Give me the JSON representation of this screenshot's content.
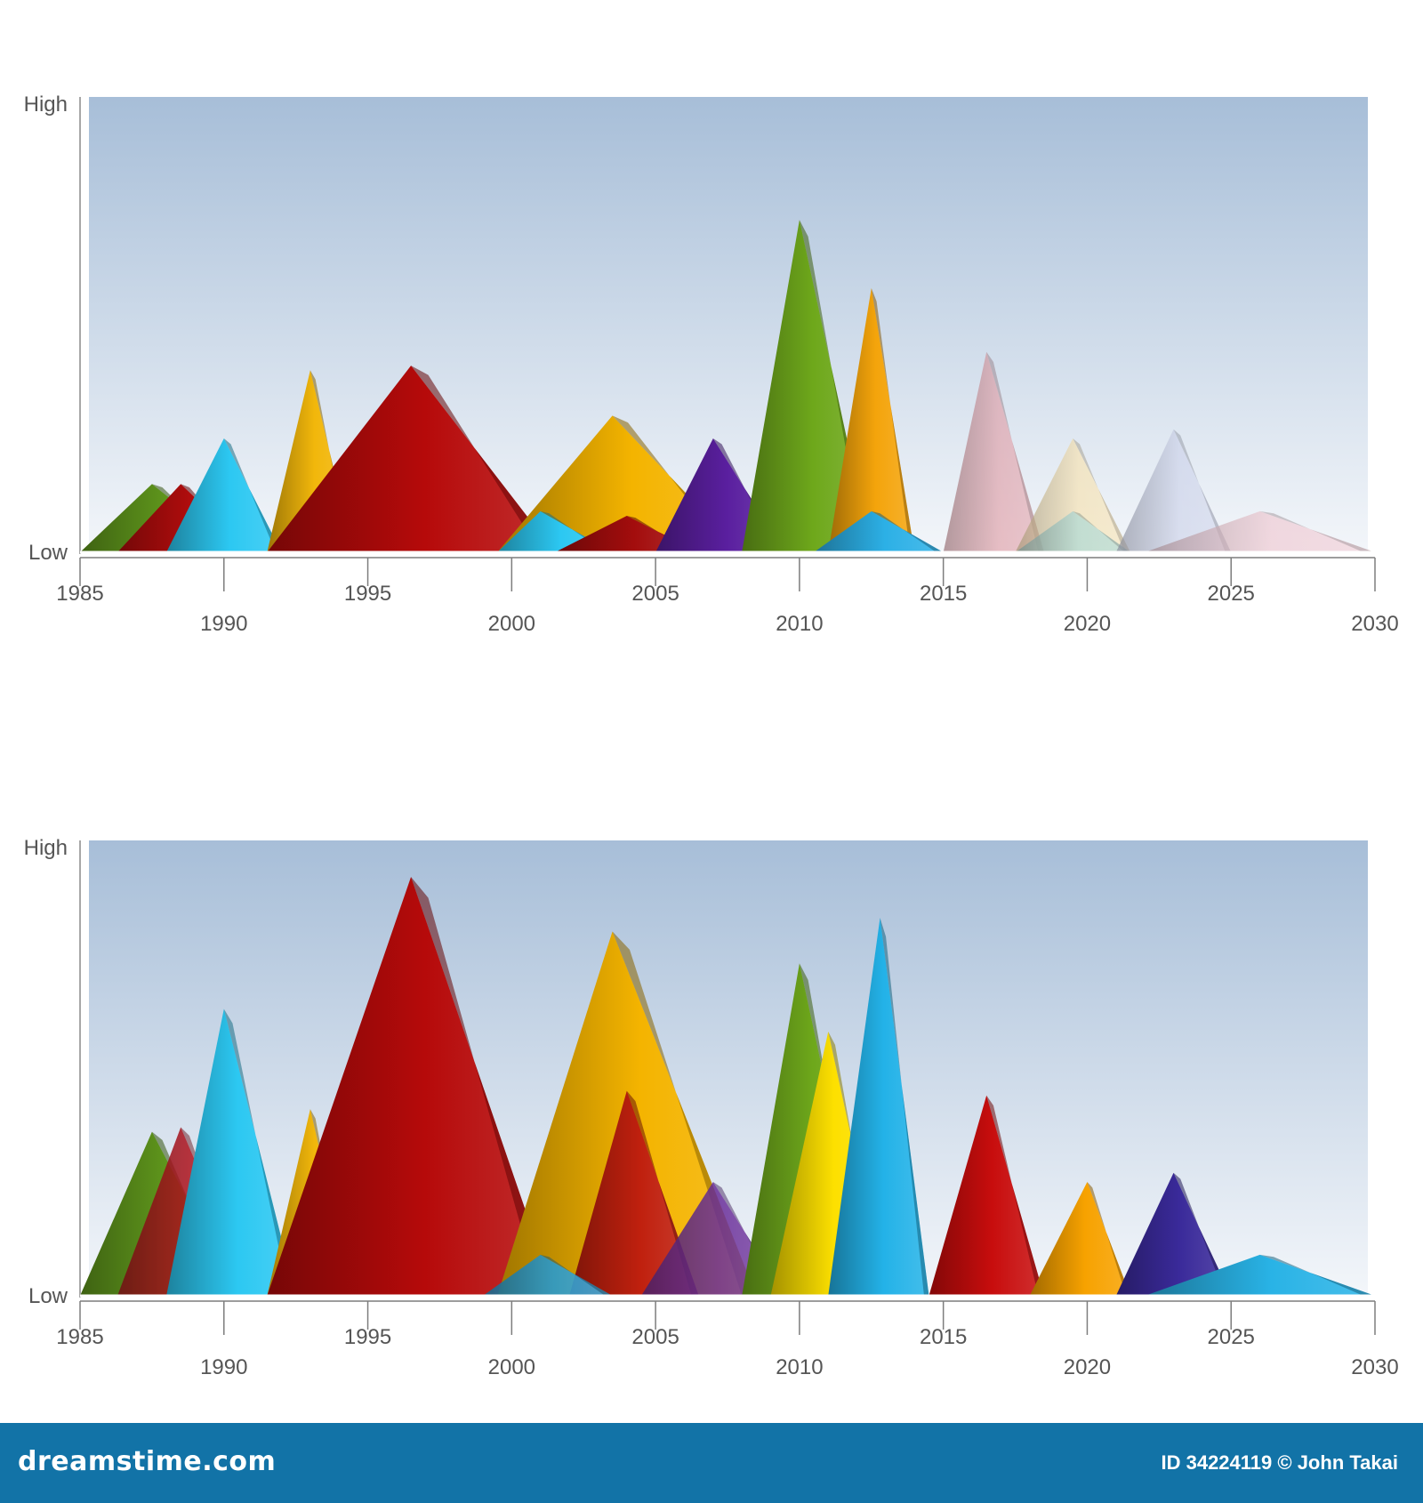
{
  "chart_data": [
    {
      "type": "area",
      "y_labels": {
        "high": "High",
        "low": "Low"
      },
      "x_ticks": [
        1985,
        1990,
        1995,
        2000,
        2005,
        2010,
        2015,
        2020,
        2025,
        2030
      ],
      "xlim": [
        1985,
        2030
      ],
      "ylim": [
        0,
        1
      ],
      "grid": false,
      "background": {
        "top": "#a7bed8",
        "bottom": "#f3f6fa"
      },
      "series": [
        {
          "start": 1985.0,
          "peak_year": 1987.5,
          "end": 1990.5,
          "peak": 0.15,
          "color": "#5f961c",
          "opacity": 1.0
        },
        {
          "start": 1986.3,
          "peak_year": 1988.5,
          "end": 1991.0,
          "peak": 0.15,
          "color": "#b10d0d",
          "opacity": 1.0
        },
        {
          "start": 1988.0,
          "peak_year": 1990.0,
          "end": 1992.0,
          "peak": 0.25,
          "color": "#2cc8f2",
          "opacity": 1.0
        },
        {
          "start": 1991.5,
          "peak_year": 1993.0,
          "end": 1994.5,
          "peak": 0.4,
          "color": "#f2b70b",
          "opacity": 1.0
        },
        {
          "start": 1991.5,
          "peak_year": 1996.5,
          "end": 2001.5,
          "peak": 0.41,
          "color": "#b60a0a",
          "opacity": 1.0
        },
        {
          "start": 1999.5,
          "peak_year": 2003.5,
          "end": 2008.0,
          "peak": 0.3,
          "color": "#f4b400",
          "opacity": 1.0
        },
        {
          "start": 1999.5,
          "peak_year": 2001.0,
          "end": 2003.5,
          "peak": 0.09,
          "color": "#2cc8f2",
          "opacity": 1.0
        },
        {
          "start": 2001.5,
          "peak_year": 2004.0,
          "end": 2006.5,
          "peak": 0.08,
          "color": "#a30d0d",
          "opacity": 1.0
        },
        {
          "start": 2005.0,
          "peak_year": 2007.0,
          "end": 2009.5,
          "peak": 0.25,
          "color": "#5a1f9f",
          "opacity": 1.0
        },
        {
          "start": 2008.0,
          "peak_year": 2010.0,
          "end": 2012.5,
          "peak": 0.73,
          "color": "#6ea81b",
          "opacity": 1.0
        },
        {
          "start": 2011.0,
          "peak_year": 2012.5,
          "end": 2014.0,
          "peak": 0.58,
          "color": "#f4a40b",
          "opacity": 1.0
        },
        {
          "start": 2010.5,
          "peak_year": 2012.5,
          "end": 2015.0,
          "peak": 0.09,
          "color": "#2cb0e6",
          "opacity": 1.0
        },
        {
          "start": 2015.0,
          "peak_year": 2016.5,
          "end": 2018.5,
          "peak": 0.44,
          "color": "#e0a0a8",
          "opacity": 0.65
        },
        {
          "start": 2017.5,
          "peak_year": 2019.5,
          "end": 2021.5,
          "peak": 0.25,
          "color": "#f7e2b0",
          "opacity": 0.65
        },
        {
          "start": 2017.5,
          "peak_year": 2019.5,
          "end": 2021.5,
          "peak": 0.09,
          "color": "#a8d8d6",
          "opacity": 0.65
        },
        {
          "start": 2021.0,
          "peak_year": 2023.0,
          "end": 2025.0,
          "peak": 0.27,
          "color": "#cdd3ea",
          "opacity": 0.65
        },
        {
          "start": 2022.0,
          "peak_year": 2026.0,
          "end": 2030.0,
          "peak": 0.09,
          "color": "#f0c9d2",
          "opacity": 0.65
        }
      ]
    },
    {
      "type": "area",
      "y_labels": {
        "high": "High",
        "low": "Low"
      },
      "x_ticks": [
        1985,
        1990,
        1995,
        2000,
        2005,
        2010,
        2015,
        2020,
        2025,
        2030
      ],
      "xlim": [
        1985,
        2030
      ],
      "ylim": [
        0,
        1
      ],
      "grid": false,
      "background": {
        "top": "#a7bed8",
        "bottom": "#f3f6fa"
      },
      "series": [
        {
          "start": 1985.0,
          "peak_year": 1987.5,
          "end": 1990.5,
          "peak": 0.36,
          "color": "#5f961c",
          "opacity": 1.0
        },
        {
          "start": 1986.3,
          "peak_year": 1988.5,
          "end": 1991.0,
          "peak": 0.37,
          "color": "#b0141e",
          "opacity": 0.85
        },
        {
          "start": 1988.0,
          "peak_year": 1990.0,
          "end": 1992.5,
          "peak": 0.63,
          "color": "#2cc8f2",
          "opacity": 1.0
        },
        {
          "start": 1991.5,
          "peak_year": 1993.0,
          "end": 1994.5,
          "peak": 0.41,
          "color": "#f2b70b",
          "opacity": 1.0
        },
        {
          "start": 1991.5,
          "peak_year": 1996.5,
          "end": 2001.5,
          "peak": 0.92,
          "color": "#b60a0a",
          "opacity": 1.0
        },
        {
          "start": 1999.5,
          "peak_year": 2003.5,
          "end": 2008.5,
          "peak": 0.8,
          "color": "#f4b400",
          "opacity": 1.0
        },
        {
          "start": 2002.0,
          "peak_year": 2004.0,
          "end": 2006.5,
          "peak": 0.45,
          "color": "#c0200e",
          "opacity": 1.0
        },
        {
          "start": 1999.0,
          "peak_year": 2001.0,
          "end": 2003.5,
          "peak": 0.09,
          "color": "#2a9ccf",
          "opacity": 0.9
        },
        {
          "start": 2004.5,
          "peak_year": 2007.0,
          "end": 2009.5,
          "peak": 0.25,
          "color": "#6b2f9a",
          "opacity": 0.85
        },
        {
          "start": 2008.0,
          "peak_year": 2010.0,
          "end": 2012.5,
          "peak": 0.73,
          "color": "#6ea81b",
          "opacity": 1.0
        },
        {
          "start": 2009.0,
          "peak_year": 2011.0,
          "end": 2013.0,
          "peak": 0.58,
          "color": "#fde000",
          "opacity": 1.0
        },
        {
          "start": 2011.0,
          "peak_year": 2012.8,
          "end": 2014.5,
          "peak": 0.83,
          "color": "#23b2e8",
          "opacity": 1.0
        },
        {
          "start": 2014.5,
          "peak_year": 2016.5,
          "end": 2018.5,
          "peak": 0.44,
          "color": "#c80d0d",
          "opacity": 1.0
        },
        {
          "start": 2018.0,
          "peak_year": 2020.0,
          "end": 2021.5,
          "peak": 0.25,
          "color": "#f7a200",
          "opacity": 1.0
        },
        {
          "start": 2021.0,
          "peak_year": 2023.0,
          "end": 2025.0,
          "peak": 0.27,
          "color": "#3a2a9a",
          "opacity": 1.0
        },
        {
          "start": 2022.0,
          "peak_year": 2026.0,
          "end": 2030.0,
          "peak": 0.09,
          "color": "#29b3e6",
          "opacity": 1.0
        }
      ]
    }
  ],
  "footer": {
    "brand": "dreamstime.com",
    "credit": "ID 34224119 © John Takai",
    "background_color": "#1273a7"
  }
}
